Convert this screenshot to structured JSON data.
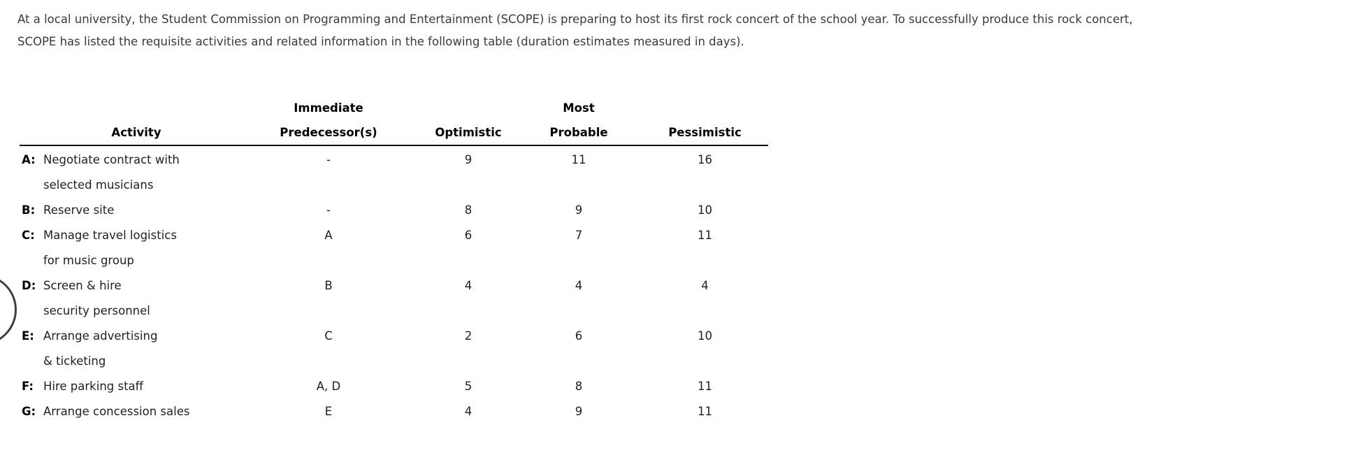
{
  "intro": {
    "lines": [
      "At a local university, the Student Commission on Programming and Entertainment (SCOPE) is preparing to host its first rock concert of the school year. To successfully produce this rock concert,",
      "SCOPE has listed the requisite activities and related information in the following table (duration estimates measured in days)."
    ]
  },
  "table": {
    "headers": {
      "immediate": "Immediate",
      "most": "Most",
      "activity": "Activity",
      "predecessors": "Predecessor(s)",
      "optimistic": "Optimistic",
      "probable": "Probable",
      "pessimistic": "Pessimistic"
    },
    "rows": [
      {
        "id": "A:",
        "desc": [
          "Negotiate contract with",
          "selected musicians"
        ],
        "pred": "-",
        "optimistic": "9",
        "probable": "11",
        "pessimistic": "16"
      },
      {
        "id": "B:",
        "desc": [
          "Reserve site"
        ],
        "pred": "-",
        "optimistic": "8",
        "probable": "9",
        "pessimistic": "10"
      },
      {
        "id": "C:",
        "desc": [
          "Manage travel logistics",
          "for music group"
        ],
        "pred": "A",
        "optimistic": "6",
        "probable": "7",
        "pessimistic": "11"
      },
      {
        "id": "D:",
        "desc": [
          "Screen & hire",
          "security personnel"
        ],
        "pred": "B",
        "optimistic": "4",
        "probable": "4",
        "pessimistic": "4"
      },
      {
        "id": "E:",
        "desc": [
          "Arrange advertising",
          "& ticketing"
        ],
        "pred": "C",
        "optimistic": "2",
        "probable": "6",
        "pessimistic": "10"
      },
      {
        "id": "F:",
        "desc": [
          "Hire parking staff"
        ],
        "pred": "A, D",
        "optimistic": "5",
        "probable": "8",
        "pessimistic": "11"
      },
      {
        "id": "G:",
        "desc": [
          "Arrange concession sales"
        ],
        "pred": "E",
        "optimistic": "4",
        "probable": "9",
        "pessimistic": "11"
      }
    ],
    "colors": {
      "text": "#1f1f1f",
      "paragraph_text": "#3a3a3a",
      "header_text": "#000000",
      "rule": "#000000",
      "background": "#ffffff"
    }
  }
}
